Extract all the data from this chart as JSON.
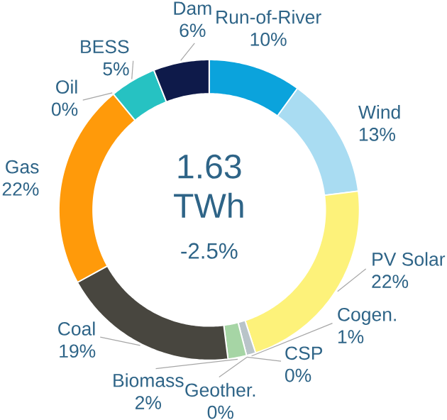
{
  "chart_data": {
    "type": "donut",
    "categories": [
      "Run-of-River",
      "Wind",
      "PV Solar",
      "Cogen.",
      "CSP",
      "Geother.",
      "Biomass",
      "Coal",
      "Gas",
      "Oil",
      "BESS",
      "Dam"
    ],
    "values": [
      10,
      13,
      22,
      1,
      0,
      0,
      2,
      19,
      22,
      0,
      5,
      6
    ],
    "value_labels": [
      "10%",
      "13%",
      "22%",
      "1%",
      "0%",
      "0%",
      "2%",
      "19%",
      "22%",
      "0%",
      "5%",
      "6%"
    ],
    "colors": [
      "#0ba3dc",
      "#a9dcf2",
      "#fdf27a",
      "#b9c4c9",
      "#e8a33a",
      "#8d6e63",
      "#a6d5a5",
      "#48463f",
      "#ff9a0a",
      "#c0392b",
      "#26c2c2",
      "#0e1a4a"
    ],
    "annotations": [
      "1.63 TWh",
      "-2.5%"
    ]
  }
}
